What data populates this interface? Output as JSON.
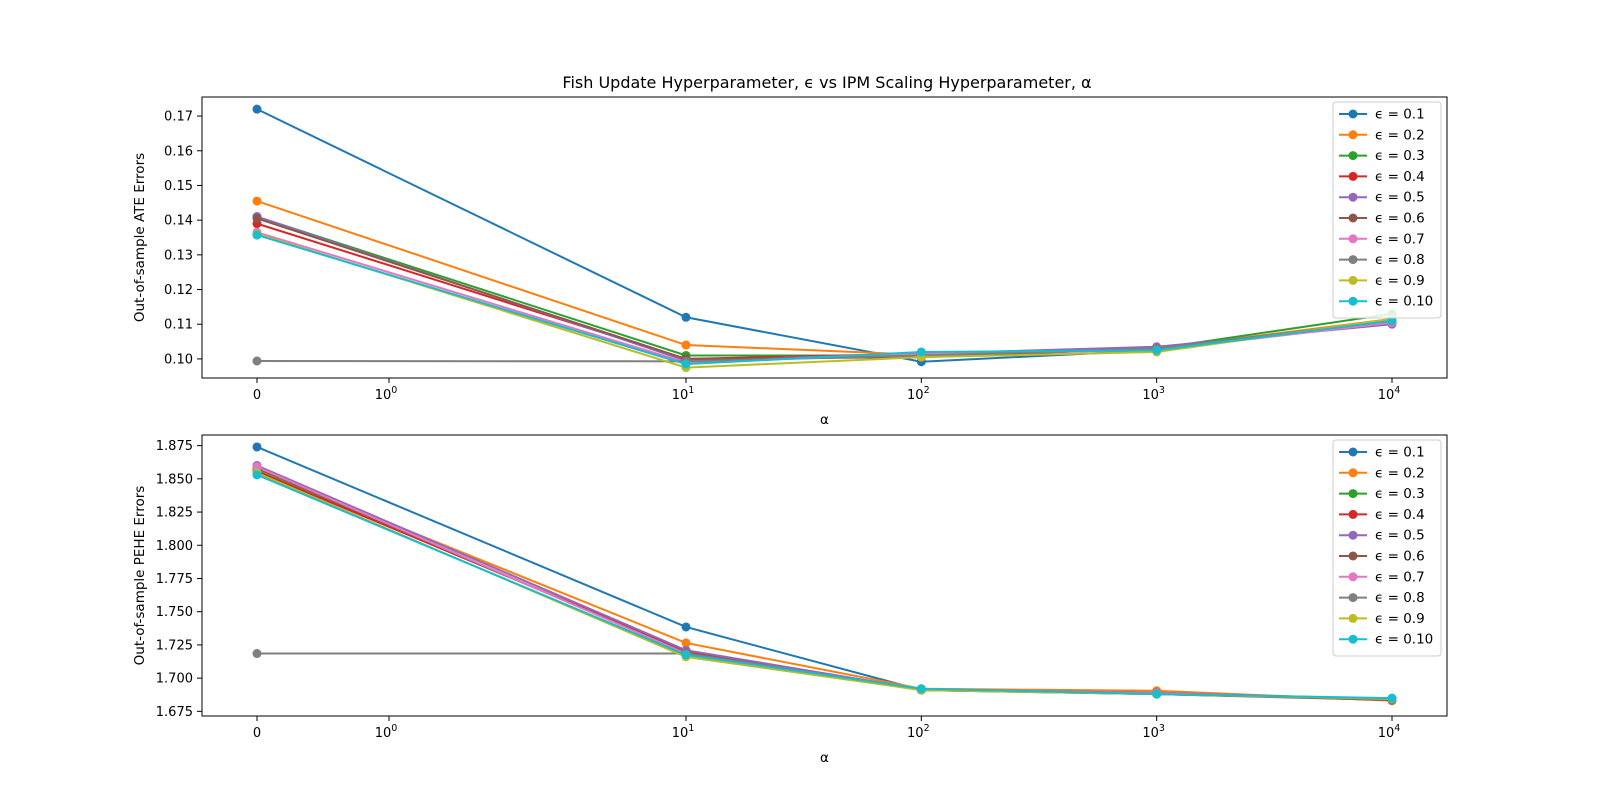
{
  "figure": {
    "title": "Fish Update Hyperparameter, ϵ vs IPM Scaling Hyperparameter, α"
  },
  "chart_data": [
    {
      "type": "line",
      "title": "Fish Update Hyperparameter, ϵ vs IPM Scaling Hyperparameter, α",
      "xlabel": "α",
      "ylabel": "Out-of-sample ATE Errors",
      "x_scale": "symlog",
      "x": [
        0,
        10,
        100,
        1000,
        10000
      ],
      "x_tick_labels": [
        {
          "value": 0,
          "label": "0"
        },
        {
          "value": 1,
          "base": "10",
          "exp": "0"
        },
        {
          "value": 10,
          "base": "10",
          "exp": "1"
        },
        {
          "value": 100,
          "base": "10",
          "exp": "2"
        },
        {
          "value": 1000,
          "base": "10",
          "exp": "3"
        },
        {
          "value": 10000,
          "base": "10",
          "exp": "4"
        }
      ],
      "yticks": [
        0.1,
        0.11,
        0.12,
        0.13,
        0.14,
        0.15,
        0.16,
        0.17
      ],
      "ylim": [
        0.0945,
        0.1755
      ],
      "grid": false,
      "legend_position": "upper-right",
      "series": [
        {
          "name": "ϵ = 0.1",
          "color": "#1f77b4",
          "values": [
            0.172,
            0.112,
            0.0992,
            0.1025,
            0.111
          ]
        },
        {
          "name": "ϵ = 0.2",
          "color": "#ff7f0e",
          "values": [
            0.1455,
            0.104,
            0.1012,
            0.103,
            0.1115
          ]
        },
        {
          "name": "ϵ = 0.3",
          "color": "#2ca02c",
          "values": [
            0.141,
            0.101,
            0.101,
            0.103,
            0.113
          ]
        },
        {
          "name": "ϵ = 0.4",
          "color": "#d62728",
          "values": [
            0.139,
            0.1,
            0.1015,
            0.103,
            0.1105
          ]
        },
        {
          "name": "ϵ = 0.5",
          "color": "#9467bd",
          "values": [
            0.141,
            0.0995,
            0.1015,
            0.1035,
            0.11
          ]
        },
        {
          "name": "ϵ = 0.6",
          "color": "#8c564b",
          "values": [
            0.1405,
            0.1,
            0.1005,
            0.103,
            0.111
          ]
        },
        {
          "name": "ϵ = 0.7",
          "color": "#e377c2",
          "values": [
            0.1365,
            0.099,
            0.1015,
            0.1025,
            0.1105
          ]
        },
        {
          "name": "ϵ = 0.8",
          "color": "#7f7f7f",
          "values": [
            0.0994,
            0.0993,
            0.101,
            0.103,
            0.111
          ]
        },
        {
          "name": "ϵ = 0.9",
          "color": "#bcbd22",
          "values": [
            0.136,
            0.0975,
            0.1005,
            0.102,
            0.1115
          ]
        },
        {
          "name": "ϵ = 0.10",
          "color": "#17becf",
          "values": [
            0.1357,
            0.0985,
            0.102,
            0.1025,
            0.111
          ]
        }
      ]
    },
    {
      "type": "line",
      "title": "",
      "xlabel": "α",
      "ylabel": "Out-of-sample PEHE Errors",
      "x_scale": "symlog",
      "x": [
        0,
        10,
        100,
        1000,
        10000
      ],
      "x_tick_labels": [
        {
          "value": 0,
          "label": "0"
        },
        {
          "value": 1,
          "base": "10",
          "exp": "0"
        },
        {
          "value": 10,
          "base": "10",
          "exp": "1"
        },
        {
          "value": 100,
          "base": "10",
          "exp": "2"
        },
        {
          "value": 1000,
          "base": "10",
          "exp": "3"
        },
        {
          "value": 10000,
          "base": "10",
          "exp": "4"
        }
      ],
      "yticks": [
        1.675,
        1.7,
        1.725,
        1.75,
        1.775,
        1.8,
        1.825,
        1.85,
        1.875
      ],
      "ylim": [
        1.6715,
        1.883
      ],
      "grid": false,
      "legend_position": "upper-right",
      "series": [
        {
          "name": "ϵ = 0.1",
          "color": "#1f77b4",
          "values": [
            1.874,
            1.7385,
            1.691,
            1.6885,
            1.6845
          ]
        },
        {
          "name": "ϵ = 0.2",
          "color": "#ff7f0e",
          "values": [
            1.857,
            1.7265,
            1.692,
            1.6905,
            1.683
          ]
        },
        {
          "name": "ϵ = 0.3",
          "color": "#2ca02c",
          "values": [
            1.856,
            1.72,
            1.691,
            1.688,
            1.684
          ]
        },
        {
          "name": "ϵ = 0.4",
          "color": "#d62728",
          "values": [
            1.8555,
            1.7205,
            1.6915,
            1.6885,
            1.6835
          ]
        },
        {
          "name": "ϵ = 0.5",
          "color": "#9467bd",
          "values": [
            1.86,
            1.721,
            1.6915,
            1.689,
            1.684
          ]
        },
        {
          "name": "ϵ = 0.6",
          "color": "#8c564b",
          "values": [
            1.858,
            1.719,
            1.691,
            1.688,
            1.6835
          ]
        },
        {
          "name": "ϵ = 0.7",
          "color": "#e377c2",
          "values": [
            1.859,
            1.7185,
            1.6915,
            1.6885,
            1.684
          ]
        },
        {
          "name": "ϵ = 0.8",
          "color": "#7f7f7f",
          "values": [
            1.7185,
            1.7185,
            1.6915,
            1.688,
            1.684
          ]
        },
        {
          "name": "ϵ = 0.9",
          "color": "#bcbd22",
          "values": [
            1.8545,
            1.716,
            1.691,
            1.688,
            1.6845
          ]
        },
        {
          "name": "ϵ = 0.10",
          "color": "#17becf",
          "values": [
            1.853,
            1.7175,
            1.692,
            1.688,
            1.685
          ]
        }
      ]
    }
  ]
}
